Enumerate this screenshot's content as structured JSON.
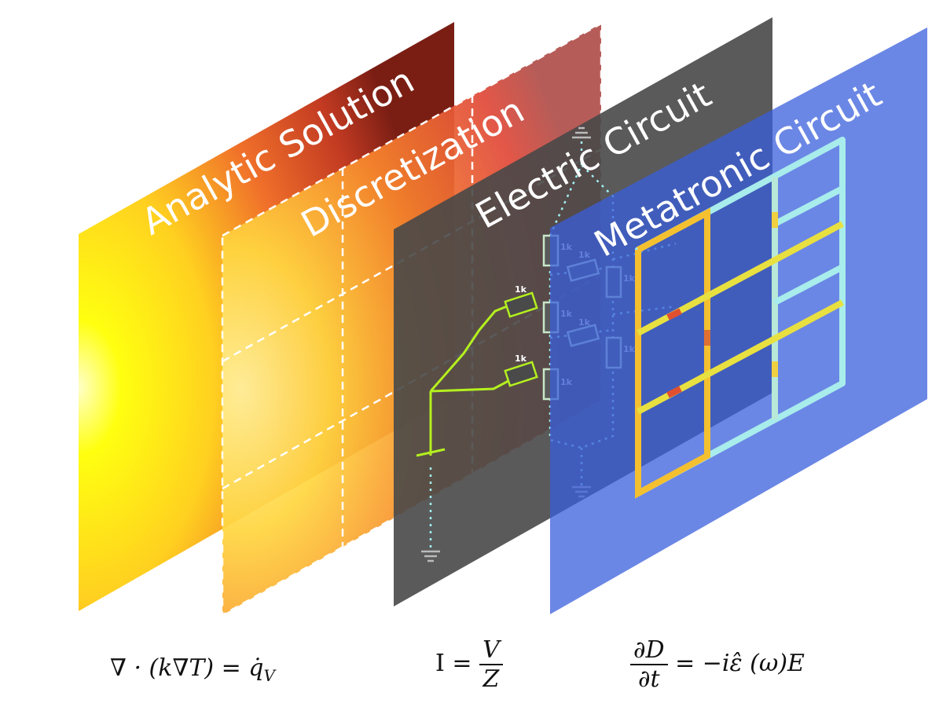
{
  "layers": [
    {
      "label": "Analytic Solution"
    },
    {
      "label": "Discretization"
    },
    {
      "label": "Electric Circuit"
    },
    {
      "label": "Metatronic Circuit"
    }
  ],
  "circuit": {
    "resistor_label": "1k"
  },
  "equations": {
    "heat": {
      "text": "∇ · (k∇T) = q̇",
      "sub": "V"
    },
    "ohm": {
      "lhs": "I =",
      "num": "V",
      "den": "Z"
    },
    "maxwell": {
      "num": "∂D",
      "den": "∂t",
      "rhs": "= −iε̂ (ω)E"
    }
  },
  "colors": {
    "heat_hot": "#ffff00",
    "heat_mid": "#f59a1c",
    "heat_cool": "#8b2a1a",
    "electric_panel": "#4a4a4a",
    "metatronic_panel": "#3f63dc",
    "wire_green": "#b4f01e",
    "wire_cyan": "#9ef0f0"
  }
}
